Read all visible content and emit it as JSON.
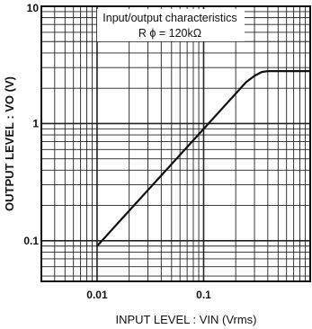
{
  "chart_data": {
    "type": "line",
    "title": "Input/output characteristics",
    "subtitle": "R ϕ = 120kΩ",
    "xlabel": "INPUT   LEVEL : VIN (Vrms)",
    "ylabel": "OUTPUT   LEVEL : VO (V)",
    "xscale": "log",
    "yscale": "log",
    "xlim": [
      0.003,
      1.0
    ],
    "ylim": [
      0.045,
      10
    ],
    "x_tick_labels": [
      "0.01",
      "0.1"
    ],
    "y_tick_labels": [
      "0.1",
      "1",
      "10"
    ],
    "grid": true,
    "series": [
      {
        "x": [
          0.01,
          0.02,
          0.05,
          0.1,
          0.2,
          0.25,
          0.3,
          0.35,
          0.4,
          0.5,
          0.7,
          1.0
        ],
        "y": [
          0.09,
          0.18,
          0.45,
          0.9,
          1.8,
          2.25,
          2.55,
          2.75,
          2.8,
          2.8,
          2.8,
          2.8
        ]
      }
    ]
  }
}
